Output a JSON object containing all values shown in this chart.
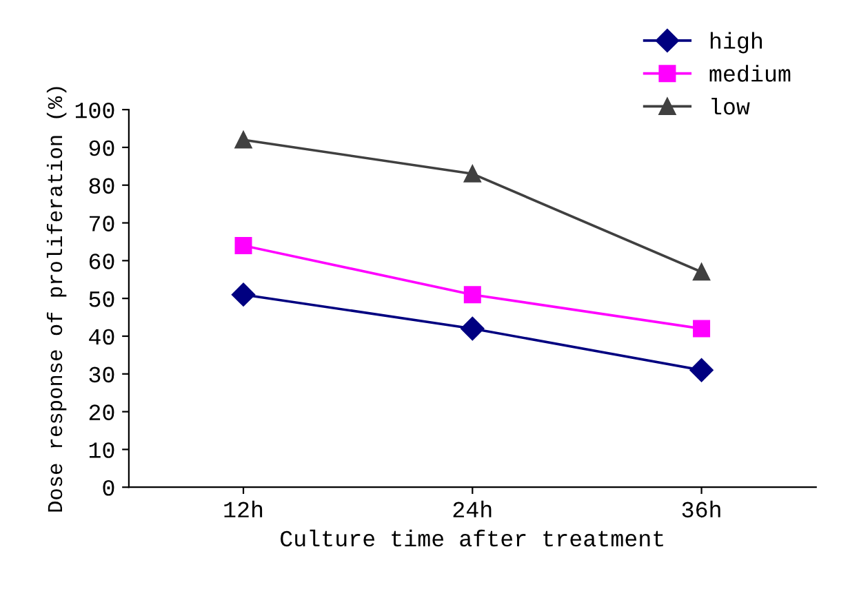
{
  "chart_data": {
    "type": "line",
    "xlabel": "Culture time after treatment",
    "ylabel": "Dose response of proliferation (%)",
    "categories": [
      "12h",
      "24h",
      "36h"
    ],
    "series": [
      {
        "name": "high",
        "color": "#000080",
        "marker": "diamond",
        "values": [
          51,
          42,
          31
        ]
      },
      {
        "name": "medium",
        "color": "#ff00ff",
        "marker": "square",
        "values": [
          64,
          51,
          42
        ]
      },
      {
        "name": "low",
        "color": "#404040",
        "marker": "triangle",
        "values": [
          92,
          83,
          57
        ]
      }
    ],
    "ylim": [
      0,
      100
    ],
    "yticks": [
      0,
      10,
      20,
      30,
      40,
      50,
      60,
      70,
      80,
      90,
      100
    ],
    "grid": false,
    "legend": "top right",
    "line_style": "solid"
  }
}
